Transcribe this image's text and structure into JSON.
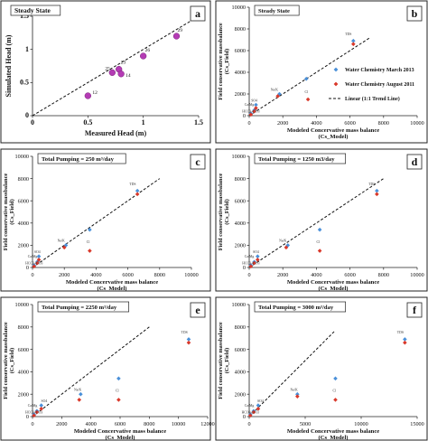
{
  "legend": {
    "march": "Water Chemistry March 2013",
    "august": "Water Chemistry August 2011",
    "trend": "Linear (1:1 Trend Line)"
  },
  "colors": {
    "march": "#4a90d9",
    "august": "#d9382a",
    "head_points": "#b43cb4",
    "panel_border": "#222222",
    "trend": "#111111"
  },
  "chart_data": [
    {
      "panel": "a",
      "type": "scatter",
      "title": "Steady State",
      "xlabel": "Measured Head (m)",
      "ylabel": "Simulated Head (m)",
      "xlim": [
        0,
        1.5
      ],
      "ylim": [
        0,
        1.5
      ],
      "xticks": [
        "0",
        "0.5",
        "1",
        "1.5"
      ],
      "yticks": [
        "0",
        "0.5",
        "1",
        "1.5"
      ],
      "trend": {
        "x": [
          0,
          1.45
        ],
        "y": [
          0,
          1.45
        ]
      },
      "points": [
        {
          "label": "12",
          "x": 0.5,
          "y": 0.3
        },
        {
          "label": "25",
          "x": 0.72,
          "y": 0.65
        },
        {
          "label": "23",
          "x": 0.78,
          "y": 0.7
        },
        {
          "label": "14",
          "x": 0.8,
          "y": 0.63
        },
        {
          "label": "26",
          "x": 1.0,
          "y": 0.9
        },
        {
          "label": "29",
          "x": 1.3,
          "y": 1.2
        }
      ]
    },
    {
      "panel": "b",
      "type": "scatter",
      "title": "Steady State",
      "xlabel": "Modeled Concervative mass balance",
      "xlabel2": "(Cs_Model)",
      "ylabel": "Field conservative massbalance",
      "ylabel2": "(Cs_Field)",
      "xlim": [
        0,
        10000
      ],
      "ylim": [
        0,
        10000
      ],
      "xticks": [
        "0",
        "2000",
        "4000",
        "6000",
        "8000",
        "10000"
      ],
      "yticks": [
        "0",
        "2000",
        "4000",
        "6000",
        "8000",
        "10000"
      ],
      "trend": {
        "x": [
          0,
          7200
        ],
        "y": [
          0,
          7200
        ]
      },
      "series": [
        {
          "name": "Water Chemistry March 2013",
          "x": [
            100,
            300,
            400,
            1800,
            3400,
            6200
          ],
          "y": [
            200,
            500,
            1000,
            2000,
            3400,
            6900
          ]
        },
        {
          "name": "Water Chemistry August 2011",
          "x": [
            100,
            300,
            400,
            1700,
            3500,
            6200
          ],
          "y": [
            100,
            400,
            700,
            1800,
            1500,
            6600
          ]
        }
      ],
      "annotations": [
        {
          "text": "TDS",
          "x": 5900,
          "y": 7400
        },
        {
          "text": "Cl",
          "x": 3400,
          "y": 2100
        },
        {
          "text": "Na/K",
          "x": 1500,
          "y": 2300
        },
        {
          "text": "SO4",
          "x": 300,
          "y": 1300
        },
        {
          "text": "Ca/Mg",
          "x": 0,
          "y": 900
        },
        {
          "text": "HCO3+CO3",
          "x": 100,
          "y": 300
        }
      ]
    },
    {
      "panel": "c",
      "type": "scatter",
      "title": "Total Pumping = 250 m³/day",
      "xlabel": "Modeled Concervative mass balance",
      "xlabel2": "(Cs_Model)",
      "ylabel": "Field conservative massbalance",
      "ylabel2": "(Cs_Field)",
      "xlim": [
        0,
        10000
      ],
      "ylim": [
        0,
        10000
      ],
      "xticks": [
        "0",
        "2000",
        "4000",
        "6000",
        "8000",
        "10000"
      ],
      "yticks": [
        "0",
        "2000",
        "4000",
        "6000",
        "8000",
        "10000"
      ],
      "trend": {
        "x": [
          0,
          8000
        ],
        "y": [
          0,
          8000
        ]
      },
      "series": [
        {
          "name": "Water Chemistry March 2013",
          "x": [
            100,
            300,
            400,
            2100,
            3600,
            6600
          ],
          "y": [
            200,
            500,
            1000,
            2000,
            3400,
            6900
          ]
        },
        {
          "name": "Water Chemistry August 2011",
          "x": [
            100,
            300,
            400,
            2000,
            3600,
            6600
          ],
          "y": [
            100,
            400,
            700,
            1800,
            1500,
            6600
          ]
        }
      ],
      "annotations": [
        {
          "text": "TDS",
          "x": 6300,
          "y": 7400
        },
        {
          "text": "Cl",
          "x": 3500,
          "y": 2200
        },
        {
          "text": "Na/K",
          "x": 1800,
          "y": 2300
        },
        {
          "text": "SO4",
          "x": 300,
          "y": 1300
        },
        {
          "text": "Ca/Mg",
          "x": 0,
          "y": 900
        },
        {
          "text": "HCO3+CO3",
          "x": 100,
          "y": 300
        }
      ]
    },
    {
      "panel": "d",
      "type": "scatter",
      "title": "Total Pumping = 1250 m3/day",
      "xlabel": "Modeled Concervative mass balance",
      "xlabel2": "(Cs_Model)",
      "ylabel": "Field conservative massbalance",
      "ylabel2": "(Cs_Field)",
      "xlim": [
        0,
        10000
      ],
      "ylim": [
        0,
        10000
      ],
      "xticks": [
        "0",
        "2000",
        "4000",
        "6000",
        "8000",
        "10000"
      ],
      "yticks": [
        "0",
        "2000",
        "4000",
        "6000",
        "8000",
        "10000"
      ],
      "trend": {
        "x": [
          0,
          8000
        ],
        "y": [
          0,
          8000
        ]
      },
      "series": [
        {
          "name": "Water Chemistry March 2013",
          "x": [
            100,
            300,
            500,
            2300,
            4200,
            7600
          ],
          "y": [
            200,
            500,
            1000,
            2000,
            3400,
            6900
          ]
        },
        {
          "name": "Water Chemistry August 2011",
          "x": [
            100,
            300,
            500,
            2200,
            4200,
            7600
          ],
          "y": [
            100,
            400,
            700,
            1800,
            1500,
            6600
          ]
        }
      ],
      "annotations": [
        {
          "text": "TDS",
          "x": 7300,
          "y": 7400
        },
        {
          "text": "Cl",
          "x": 4100,
          "y": 2200
        },
        {
          "text": "Na/K",
          "x": 2000,
          "y": 2300
        },
        {
          "text": "SO4",
          "x": 400,
          "y": 1300
        },
        {
          "text": "Ca/Mg",
          "x": 0,
          "y": 900
        },
        {
          "text": "HCO3+CO3",
          "x": 100,
          "y": 300
        }
      ]
    },
    {
      "panel": "e",
      "type": "scatter",
      "title": "Total Pumping = 2250 m³/day",
      "xlabel": "Modeled Concervative mass balance",
      "xlabel2": "(Cs_Model)",
      "ylabel": "Field conservative massbalance",
      "ylabel2": "(Cs_Field)",
      "xlim": [
        0,
        12000
      ],
      "ylim": [
        0,
        10000
      ],
      "xticks": [
        "0",
        "2000",
        "4000",
        "6000",
        "8000",
        "10000",
        "12000"
      ],
      "yticks": [
        "0",
        "2000",
        "4000",
        "6000",
        "8000",
        "10000"
      ],
      "trend": {
        "x": [
          0,
          8000
        ],
        "y": [
          0,
          8000
        ]
      },
      "series": [
        {
          "name": "Water Chemistry March 2013",
          "x": [
            100,
            300,
            600,
            3300,
            5900,
            10700
          ],
          "y": [
            200,
            500,
            1000,
            2000,
            3400,
            6900
          ]
        },
        {
          "name": "Water Chemistry August 2011",
          "x": [
            100,
            300,
            600,
            3200,
            5900,
            10700
          ],
          "y": [
            100,
            400,
            700,
            1500,
            1500,
            6600
          ]
        }
      ],
      "annotations": [
        {
          "text": "TDS",
          "x": 10400,
          "y": 7400
        },
        {
          "text": "Cl",
          "x": 5800,
          "y": 2200
        },
        {
          "text": "Na/K",
          "x": 3100,
          "y": 2300
        },
        {
          "text": "SO4",
          "x": 800,
          "y": 1300
        },
        {
          "text": "Ca/Mg",
          "x": 0,
          "y": 900
        },
        {
          "text": "HCO3+CO3",
          "x": 100,
          "y": 300
        }
      ]
    },
    {
      "panel": "f",
      "type": "scatter",
      "title": "Total Pumping = 3000 m³/day",
      "xlabel": "Modeled Concervative mass balance",
      "xlabel2": "(Cs_Model)",
      "ylabel": "Field conservative massbalance",
      "ylabel2": "(Cs_Field)",
      "xlim": [
        0,
        15000
      ],
      "ylim": [
        0,
        10000
      ],
      "xticks": [
        "0",
        "5000",
        "10000",
        "15000"
      ],
      "yticks": [
        "0",
        "2000",
        "4000",
        "6000",
        "8000",
        "10000"
      ],
      "trend": {
        "x": [
          0,
          7600
        ],
        "y": [
          0,
          7600
        ]
      },
      "series": [
        {
          "name": "Water Chemistry March 2013",
          "x": [
            100,
            400,
            800,
            4300,
            7700,
            13900
          ],
          "y": [
            200,
            500,
            1000,
            2000,
            3400,
            6900
          ]
        },
        {
          "name": "Water Chemistry August 2011",
          "x": [
            100,
            400,
            800,
            4300,
            7700,
            13900
          ],
          "y": [
            100,
            400,
            700,
            1800,
            1500,
            6600
          ]
        }
      ],
      "annotations": [
        {
          "text": "TDS",
          "x": 13500,
          "y": 7400
        },
        {
          "text": "Cl",
          "x": 7600,
          "y": 2200
        },
        {
          "text": "Na/K",
          "x": 4000,
          "y": 2300
        },
        {
          "text": "SO4",
          "x": 1000,
          "y": 1300
        },
        {
          "text": "Ca/Mg",
          "x": 0,
          "y": 900
        },
        {
          "text": "HCO3+CO3",
          "x": 100,
          "y": 300
        }
      ]
    }
  ]
}
